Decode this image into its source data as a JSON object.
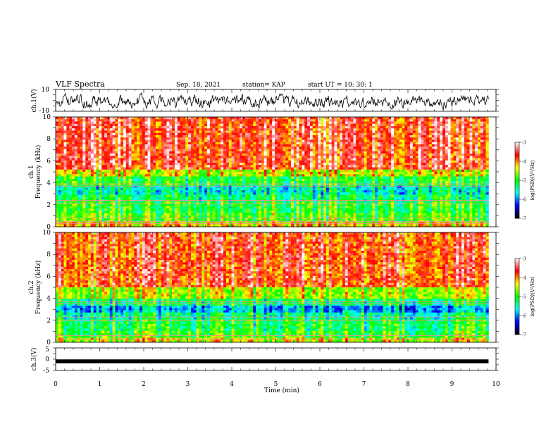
{
  "header": {
    "title": "VLF Spectra",
    "date": "Sep. 18, 2021",
    "station": "station= KAP",
    "start": "start  UT  =   10: 30: 1"
  },
  "chart_data": [
    {
      "type": "line",
      "name": "ch1-waveform",
      "ylabel": "ch.1(V)",
      "ylim": [
        -10,
        10
      ],
      "ytick_labels": [
        "10",
        "-10"
      ],
      "xlim": [
        0,
        10
      ],
      "data_end_min": 9.83,
      "color": "#000000",
      "trace_level_v": {
        "mean": -1.0,
        "amplitude": 4.5
      }
    },
    {
      "type": "heatmap",
      "name": "ch1-spectrogram",
      "ylabel": "ch.1\nFrequency  (kHz)",
      "ylim": [
        0,
        10
      ],
      "ytick_labels": [
        "0",
        "2",
        "4",
        "6",
        "8",
        "10"
      ],
      "xlim": [
        0,
        10
      ],
      "data_end_min": 9.83,
      "color_scale": {
        "label": "log(PSD)(V²/Hz)",
        "range": [
          -7,
          -3
        ],
        "tick_labels": [
          "-3",
          "-4",
          "-5",
          "-6",
          "-7"
        ],
        "colors": [
          "#000000",
          "#0000ff",
          "#00ffff",
          "#00ff00",
          "#ffff00",
          "#ff0000",
          "#ffffff"
        ]
      },
      "bands_khz": [
        {
          "from": 0.0,
          "to": 0.5,
          "log_psd": -4.2
        },
        {
          "from": 0.5,
          "to": 1.2,
          "log_psd": -4.8
        },
        {
          "from": 1.2,
          "to": 2.2,
          "log_psd": -5.0
        },
        {
          "from": 2.2,
          "to": 3.0,
          "log_psd": -5.2
        },
        {
          "from": 3.0,
          "to": 3.8,
          "log_psd": -5.5
        },
        {
          "from": 3.8,
          "to": 4.6,
          "log_psd": -5.0
        },
        {
          "from": 4.6,
          "to": 5.3,
          "log_psd": -4.4
        },
        {
          "from": 5.3,
          "to": 10.0,
          "log_psd": -3.6
        }
      ],
      "lines_khz": [
        0.3,
        0.5,
        0.8,
        2.1,
        2.4,
        3.7,
        3.9
      ]
    },
    {
      "type": "heatmap",
      "name": "ch2-spectrogram",
      "ylabel": "ch.2\nFrequency  (kHz)",
      "ylim": [
        0,
        10
      ],
      "ytick_labels": [
        "0",
        "2",
        "4",
        "6",
        "8",
        "10"
      ],
      "xlim": [
        0,
        10
      ],
      "data_end_min": 9.83,
      "color_scale": {
        "label": "log(PSD)(V²/Hz)",
        "range": [
          -7,
          -3
        ],
        "tick_labels": [
          "-3",
          "-4",
          "-5",
          "-6",
          "-7"
        ],
        "colors": [
          "#000000",
          "#0000ff",
          "#00ffff",
          "#00ff00",
          "#ffff00",
          "#ff0000",
          "#ffffff"
        ]
      },
      "bands_khz": [
        {
          "from": 0.0,
          "to": 0.5,
          "log_psd": -4.4
        },
        {
          "from": 0.5,
          "to": 1.0,
          "log_psd": -4.9
        },
        {
          "from": 1.0,
          "to": 2.0,
          "log_psd": -5.1
        },
        {
          "from": 2.0,
          "to": 2.8,
          "log_psd": -5.3
        },
        {
          "from": 2.8,
          "to": 3.4,
          "log_psd": -5.8
        },
        {
          "from": 3.4,
          "to": 4.0,
          "log_psd": -5.2
        },
        {
          "from": 4.0,
          "to": 5.0,
          "log_psd": -4.5
        },
        {
          "from": 5.0,
          "to": 10.0,
          "log_psd": -3.7
        }
      ],
      "lines_khz": [
        0.3,
        0.6,
        2.0,
        2.3,
        3.5,
        3.7
      ]
    },
    {
      "type": "line",
      "name": "ch3-waveform",
      "ylabel": "ch.3(V)",
      "ylim": [
        -5,
        5
      ],
      "ytick_labels": [
        "5",
        "0",
        "-5"
      ],
      "xlim": [
        0,
        10
      ],
      "data_end_min": 9.83,
      "color": "#000000",
      "trace_level_v": {
        "mean": -0.5,
        "amplitude": 0.4
      },
      "xlabel": "Time  (min)",
      "xtick_labels": [
        "0",
        "1",
        "2",
        "3",
        "4",
        "5",
        "6",
        "7",
        "8",
        "9",
        "10"
      ]
    }
  ]
}
